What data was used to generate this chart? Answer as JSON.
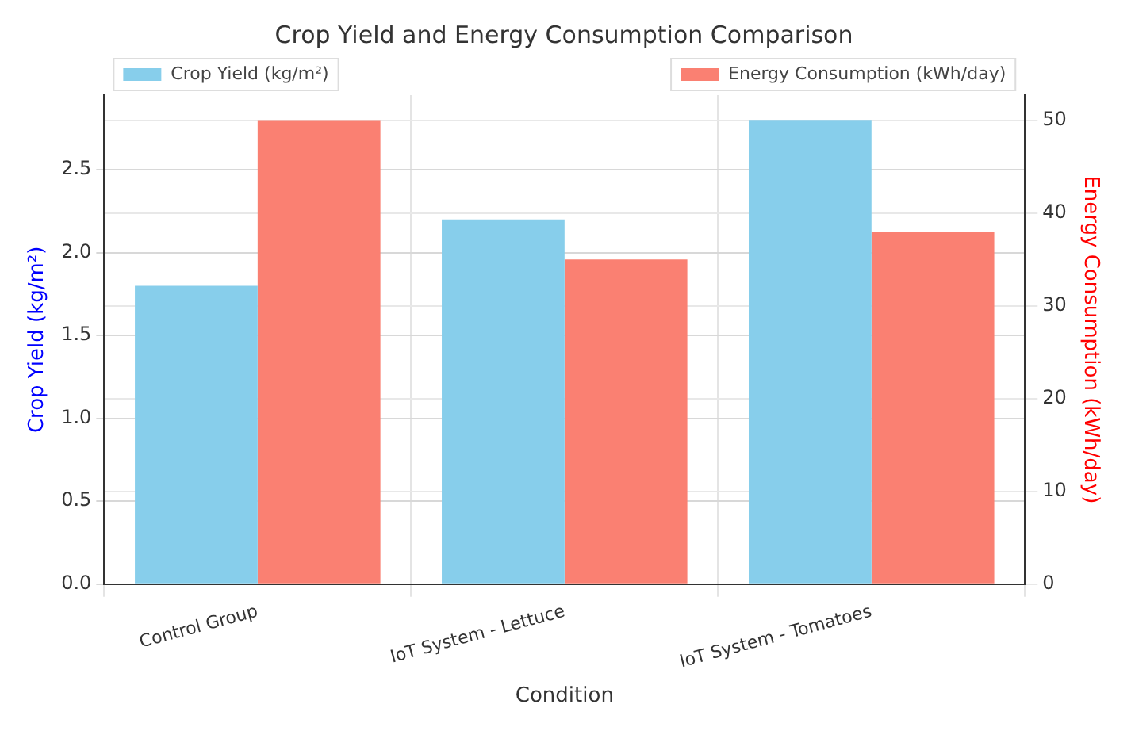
{
  "chart_data": {
    "type": "bar",
    "title": "Crop Yield and Energy Consumption Comparison",
    "xlabel": "Condition",
    "ylabel": "Crop Yield (kg/m²)",
    "y2label": "Energy Consumption (kWh/day)",
    "categories": [
      "Control Group",
      "IoT System - Lettuce",
      "IoT System - Tomatoes"
    ],
    "series": [
      {
        "name": "Crop Yield (kg/m²)",
        "color": "#87ceeb",
        "values": [
          1.8,
          2.2,
          2.8
        ]
      },
      {
        "name": "Energy Consumption (kWh/day)",
        "color": "#fa8072",
        "values": [
          50,
          35,
          38
        ],
        "axis": "y2"
      }
    ],
    "ylim": [
      0,
      2.95
    ],
    "yticks": [
      {
        "value": 0,
        "label": "0.0"
      },
      0.5,
      {
        "value": 1,
        "label": "1.0"
      },
      1.5,
      {
        "value": 2,
        "label": "2.0"
      },
      2.5
    ],
    "y2lim": [
      0,
      52.7
    ],
    "y2ticks": [
      0,
      10,
      20,
      30,
      40,
      50
    ],
    "grid": true,
    "legend": "top"
  }
}
